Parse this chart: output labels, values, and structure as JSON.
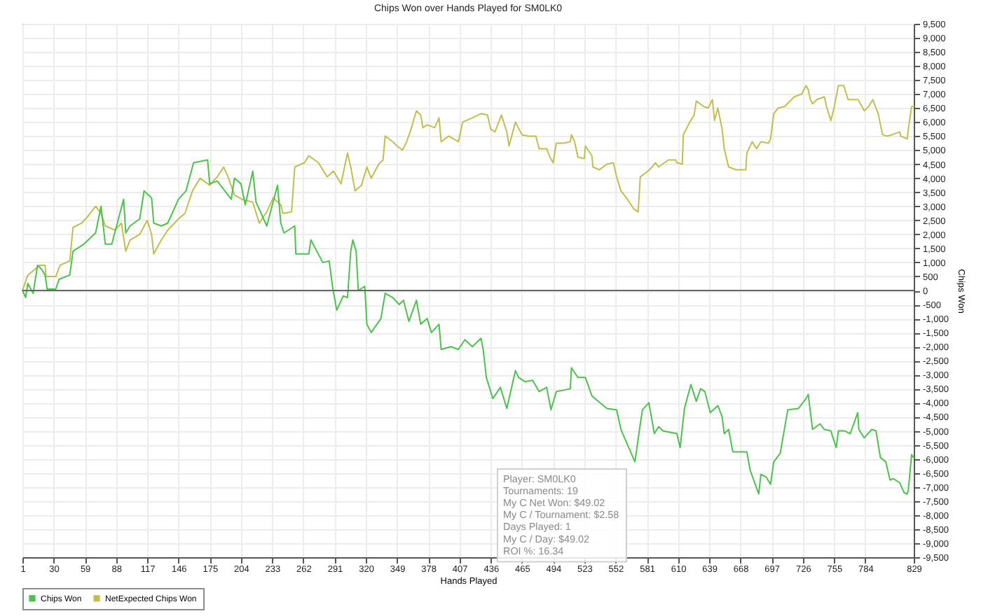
{
  "chart_data": {
    "type": "line",
    "title": "Chips Won over Hands Played for SM0LK0",
    "xlabel": "Hands Played",
    "ylabel": "Chips Won",
    "xlim": [
      1,
      829
    ],
    "xticks": [
      1,
      30,
      59,
      88,
      117,
      146,
      175,
      204,
      233,
      262,
      291,
      320,
      349,
      378,
      407,
      436,
      465,
      494,
      523,
      552,
      581,
      610,
      639,
      668,
      697,
      726,
      755,
      784,
      829
    ],
    "ylim": [
      -9500,
      9500
    ],
    "yticks": [
      {
        "value": -9500,
        "label": "-9,500"
      },
      {
        "value": -9000,
        "label": "-9,000"
      },
      {
        "value": -8500,
        "label": "-8,500"
      },
      {
        "value": -8000,
        "label": "-8,000"
      },
      {
        "value": -7500,
        "label": "-7,500"
      },
      {
        "value": -7000,
        "label": "-7,000"
      },
      {
        "value": -6500,
        "label": "-6,500"
      },
      {
        "value": -6000,
        "label": "-6,000"
      },
      {
        "value": -5500,
        "label": "-5,500"
      },
      {
        "value": -5000,
        "label": "-5,000"
      },
      {
        "value": -4500,
        "label": "-4,500"
      },
      {
        "value": -4000,
        "label": "-4,000"
      },
      {
        "value": -3500,
        "label": "-3,500"
      },
      {
        "value": -3000,
        "label": "-3,000"
      },
      {
        "value": -2500,
        "label": "-2,500"
      },
      {
        "value": -2000,
        "label": "-2,000"
      },
      {
        "value": -1500,
        "label": "-1,500"
      },
      {
        "value": -1000,
        "label": "-1,000"
      },
      -500,
      0,
      500,
      {
        "value": 1000,
        "label": "1,000"
      },
      {
        "value": 1500,
        "label": "1,500"
      },
      {
        "value": 2000,
        "label": "2,000"
      },
      {
        "value": 2500,
        "label": "2,500"
      },
      {
        "value": 3000,
        "label": "3,000"
      },
      {
        "value": 3500,
        "label": "3,500"
      },
      {
        "value": 4000,
        "label": "4,000"
      },
      {
        "value": 4500,
        "label": "4,500"
      },
      {
        "value": 5000,
        "label": "5,000"
      },
      {
        "value": 5500,
        "label": "5,500"
      },
      {
        "value": 6000,
        "label": "6,000"
      },
      {
        "value": 6500,
        "label": "6,500"
      },
      {
        "value": 7000,
        "label": "7,000"
      },
      {
        "value": 7500,
        "label": "7,500"
      },
      {
        "value": 8000,
        "label": "8,000"
      },
      {
        "value": 8500,
        "label": "8,500"
      },
      {
        "value": 9000,
        "label": "9,000"
      },
      {
        "value": 9500,
        "label": "9,500"
      }
    ],
    "grid": true,
    "legend": "bottom left",
    "ref_lines": [
      {
        "axis": "y",
        "value": 0,
        "color": "#666666"
      }
    ],
    "annotations": [
      "Player: SM0LK0",
      "Tournaments: 19",
      "My C Net Won: $49.02",
      "My C / Tournament: $2.58",
      "Days Played: 1",
      "My C / Day: $49.02",
      "ROI %: 16.34"
    ],
    "series": [
      {
        "name": "Chips Won",
        "color": "#4cc24c",
        "x": [
          1,
          4,
          6,
          11,
          15,
          19,
          22,
          24,
          32,
          35,
          45,
          48,
          58,
          69,
          74,
          78,
          84,
          95,
          97,
          101,
          110,
          114,
          121,
          123,
          130,
          136,
          146,
          153,
          160,
          173,
          175,
          182,
          195,
          198,
          204,
          208,
          215,
          218,
          228,
          238,
          241,
          244,
          254,
          255,
          267,
          269,
          280,
          286,
          289,
          293,
          299,
          303,
          306,
          308,
          311,
          313,
          319,
          321,
          325,
          334,
          338,
          345,
          351,
          355,
          360,
          367,
          371,
          377,
          381,
          388,
          390,
          399,
          406,
          412,
          419,
          427,
          429,
          432,
          438,
          445,
          451,
          459,
          462,
          468,
          475,
          481,
          488,
          492,
          497,
          510,
          511,
          517,
          524,
          530,
          536,
          544,
          553,
          557,
          566,
          570,
          575,
          577,
          583,
          588,
          592,
          596,
          609,
          612,
          616,
          622,
          627,
          631,
          635,
          640,
          647,
          651,
          653,
          657,
          661,
          674,
          677,
          685,
          687,
          692,
          696,
          699,
          705,
          712,
          722,
          729,
          731,
          735,
          742,
          746,
          752,
          757,
          759,
          765,
          770,
          777,
          778,
          783,
          790,
          794,
          798,
          803,
          807,
          810,
          816,
          820,
          823,
          824,
          827,
          829
        ],
        "values": [
          0,
          -250,
          250,
          -100,
          900,
          750,
          550,
          50,
          50,
          400,
          550,
          1400,
          1650,
          2050,
          3000,
          1650,
          1650,
          3250,
          2050,
          2300,
          2550,
          3550,
          3300,
          2400,
          2300,
          2400,
          3250,
          3550,
          4550,
          4650,
          3800,
          3900,
          3250,
          4000,
          3800,
          3050,
          4250,
          3150,
          2300,
          3750,
          2400,
          2050,
          2300,
          1300,
          1300,
          1800,
          1000,
          1050,
          150,
          -700,
          -200,
          -250,
          1400,
          1800,
          1400,
          0,
          150,
          -1200,
          -1500,
          -1000,
          -100,
          -250,
          -500,
          -350,
          -1100,
          -350,
          -1200,
          -1000,
          -1500,
          -1200,
          -2100,
          -2000,
          -2100,
          -1750,
          -2000,
          -1700,
          -2100,
          -3100,
          -3850,
          -3450,
          -4200,
          -2850,
          -3100,
          -3250,
          -3200,
          -3600,
          -3450,
          -4250,
          -3600,
          -3500,
          -2750,
          -3100,
          -3100,
          -3750,
          -3950,
          -4200,
          -4250,
          -4950,
          -5750,
          -6100,
          -4750,
          -4250,
          -4000,
          -5100,
          -4850,
          -5000,
          -5100,
          -5600,
          -4200,
          -3350,
          -3950,
          -3500,
          -3600,
          -4350,
          -4100,
          -4500,
          -5100,
          -4950,
          -5750,
          -5750,
          -6400,
          -7250,
          -6550,
          -6650,
          -6900,
          -6100,
          -5800,
          -4250,
          -4200,
          -3850,
          -3700,
          -4950,
          -4750,
          -4950,
          -5000,
          -5600,
          -5000,
          -5000,
          -5100,
          -4350,
          -4950,
          -5250,
          -4950,
          -5000,
          -5950,
          -6100,
          -6750,
          -6700,
          -6850,
          -7200,
          -7250,
          -7100,
          -5850,
          -5950
        ]
      },
      {
        "name": "NetExpected Chips Won",
        "color": "#c2be4e",
        "x": [
          1,
          6,
          17,
          22,
          23,
          32,
          36,
          45,
          48,
          56,
          62,
          69,
          74,
          78,
          87,
          93,
          97,
          101,
          110,
          117,
          121,
          123,
          130,
          136,
          146,
          152,
          159,
          166,
          175,
          182,
          188,
          192,
          198,
          205,
          215,
          221,
          228,
          234,
          241,
          243,
          251,
          254,
          263,
          267,
          276,
          284,
          290,
          297,
          303,
          306,
          310,
          316,
          321,
          325,
          332,
          336,
          338,
          345,
          349,
          354,
          358,
          362,
          367,
          371,
          373,
          377,
          384,
          388,
          390,
          397,
          406,
          410,
          419,
          427,
          433,
          436,
          440,
          446,
          451,
          453,
          459,
          465,
          471,
          478,
          481,
          488,
          491,
          494,
          497,
          504,
          510,
          511,
          514,
          517,
          523,
          524,
          530,
          531,
          537,
          544,
          550,
          553,
          557,
          563,
          569,
          573,
          575,
          582,
          586,
          589,
          592,
          601,
          608,
          609,
          614,
          615,
          621,
          625,
          627,
          634,
          638,
          642,
          644,
          647,
          651,
          653,
          657,
          664,
          673,
          674,
          679,
          683,
          687,
          694,
          696,
          699,
          703,
          709,
          718,
          725,
          729,
          731,
          733,
          735,
          739,
          746,
          748,
          752,
          755,
          759,
          764,
          768,
          777,
          778,
          783,
          787,
          791,
          796,
          800,
          804,
          809,
          816,
          817,
          823,
          824,
          827,
          829
        ],
        "values": [
          0,
          550,
          900,
          900,
          500,
          500,
          900,
          1050,
          2250,
          2400,
          2650,
          3000,
          2750,
          2300,
          2150,
          2400,
          1400,
          1800,
          2000,
          2500,
          2000,
          1300,
          1800,
          2150,
          2550,
          2750,
          3550,
          4000,
          3750,
          4050,
          4400,
          4050,
          3400,
          3250,
          3150,
          2400,
          2800,
          3300,
          3050,
          2750,
          2800,
          4400,
          4550,
          4800,
          4550,
          4050,
          4250,
          3800,
          4900,
          4400,
          3550,
          3750,
          4400,
          4000,
          4500,
          4650,
          5500,
          5300,
          5150,
          5000,
          5300,
          5750,
          6400,
          6250,
          5800,
          5900,
          5800,
          6150,
          5300,
          5500,
          5300,
          6000,
          6150,
          6300,
          6250,
          5750,
          5650,
          6250,
          5650,
          5150,
          6000,
          5550,
          5500,
          5500,
          5050,
          5050,
          4750,
          4550,
          5250,
          5250,
          5300,
          5550,
          5300,
          4750,
          4700,
          5150,
          4800,
          4400,
          4300,
          4500,
          4550,
          4050,
          3550,
          3250,
          2900,
          2800,
          4050,
          4250,
          4400,
          4550,
          4400,
          4650,
          4650,
          4550,
          4500,
          5550,
          6000,
          6250,
          6750,
          6550,
          6500,
          6800,
          6050,
          6500,
          5750,
          5050,
          4400,
          4300,
          4300,
          4900,
          5300,
          5050,
          5300,
          5250,
          5400,
          6300,
          6500,
          6550,
          6900,
          7000,
          7300,
          7150,
          6800,
          6650,
          6800,
          6900,
          6550,
          6050,
          6500,
          7300,
          7300,
          6800,
          6800,
          6750,
          6400,
          6550,
          6800,
          6300,
          5550,
          5500,
          5550,
          5650,
          5500,
          5400,
          5750,
          6550,
          6550
        ]
      }
    ]
  }
}
